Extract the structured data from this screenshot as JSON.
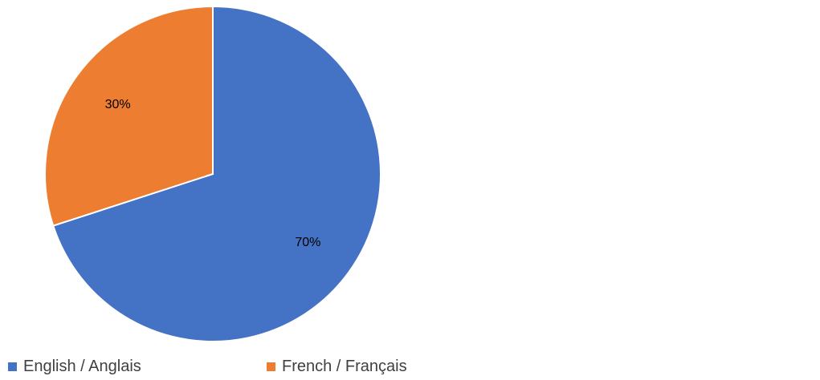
{
  "chart_data": {
    "type": "pie",
    "title": "",
    "categories": [
      "English / Anglais",
      "French / Français"
    ],
    "values": [
      70,
      30
    ],
    "labels": [
      "70%",
      "30%"
    ],
    "colors": [
      "#4472C4",
      "#ED7D31"
    ],
    "start_angle_deg": 0,
    "direction": "clockwise",
    "legend_position": "bottom-left"
  }
}
